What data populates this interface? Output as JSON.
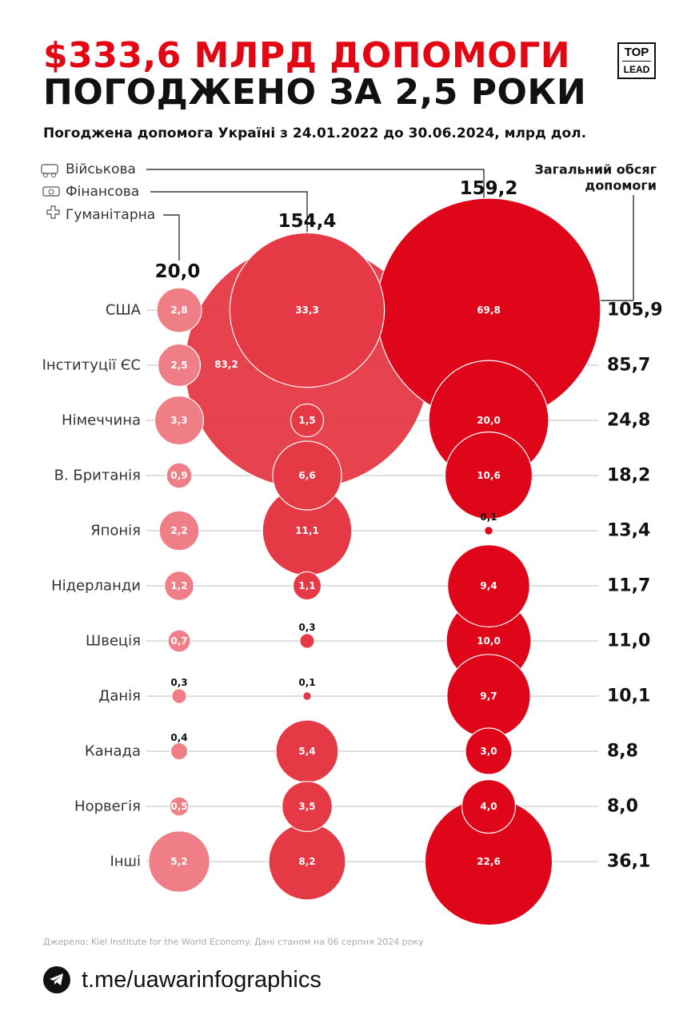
{
  "header": {
    "title_line1": "$333,6 МЛРД ДОПОМОГИ",
    "title_line2": "ПОГОДЖЕНО ЗА 2,5 РОКИ",
    "subtitle": "Погоджена допомога Україні з 24.01.2022 до 30.06.2024, млрд дол.",
    "logo_top": "TOP",
    "logo_bottom": "LEAD"
  },
  "legend": {
    "military": "Військова",
    "financial": "Фінансова",
    "humanitarian": "Гуманітарна",
    "total_label_line1": "Загальний обсяг",
    "total_label_line2": "допомоги"
  },
  "chart_data": {
    "type": "bubble-matrix",
    "title": "Погоджена допомога Україні з 24.01.2022 до 30.06.2024, млрд дол.",
    "unit": "млрд дол.",
    "countries": [
      "США",
      "Інституції ЄС",
      "Німеччина",
      "В. Британія",
      "Японія",
      "Нідерланди",
      "Швеція",
      "Данія",
      "Канада",
      "Норвегія",
      "Інші"
    ],
    "series": [
      {
        "name": "Гуманітарна",
        "total": "20,0",
        "color": "#f07e86",
        "values": [
          2.8,
          2.5,
          3.3,
          0.9,
          2.2,
          1.2,
          0.7,
          0.3,
          0.4,
          0.5,
          5.2
        ],
        "labels": [
          "2,8",
          "2,5",
          "3,3",
          "0,9",
          "2,2",
          "1,2",
          "0,7",
          "0,3",
          "0,4",
          "0,5",
          "5,2"
        ]
      },
      {
        "name": "Фінансова",
        "total": "154,4",
        "color": "#e63946",
        "values": [
          33.3,
          83.2,
          1.5,
          6.6,
          11.1,
          1.1,
          0.3,
          0.1,
          5.4,
          3.5,
          8.2
        ],
        "labels": [
          "33,3",
          "83,2",
          "1,5",
          "6,6",
          "11,1",
          "1,1",
          "0,3",
          "0,1",
          "5,4",
          "3,5",
          "8,2"
        ]
      },
      {
        "name": "Військова",
        "total": "159,2",
        "color": "#e0061a",
        "values": [
          69.8,
          0,
          20.0,
          10.6,
          0.1,
          9.4,
          10.0,
          9.7,
          3.0,
          4.0,
          22.6
        ],
        "labels": [
          "69,8",
          "",
          "20,0",
          "10,6",
          "0,1",
          "9,4",
          "10,0",
          "9,7",
          "3,0",
          "4,0",
          "22,6"
        ]
      }
    ],
    "totals": [
      105.9,
      85.7,
      24.8,
      18.2,
      13.4,
      11.7,
      11.0,
      10.1,
      8.8,
      8.0,
      36.1
    ],
    "total_labels": [
      "105,9",
      "85,7",
      "24,8",
      "18,2",
      "13,4",
      "11,7",
      "11,0",
      "10,1",
      "8,8",
      "8,0",
      "36,1"
    ]
  },
  "source": "Джерело: Kiel Institute for the World Economy. Дані станом на 06 серпня 2024 року",
  "footer": {
    "link": "t.me/uawarinfographics"
  },
  "colors": {
    "accent": "#e30613",
    "humanitarian": "#f07e86",
    "financial": "#e63946",
    "military": "#e0061a"
  }
}
